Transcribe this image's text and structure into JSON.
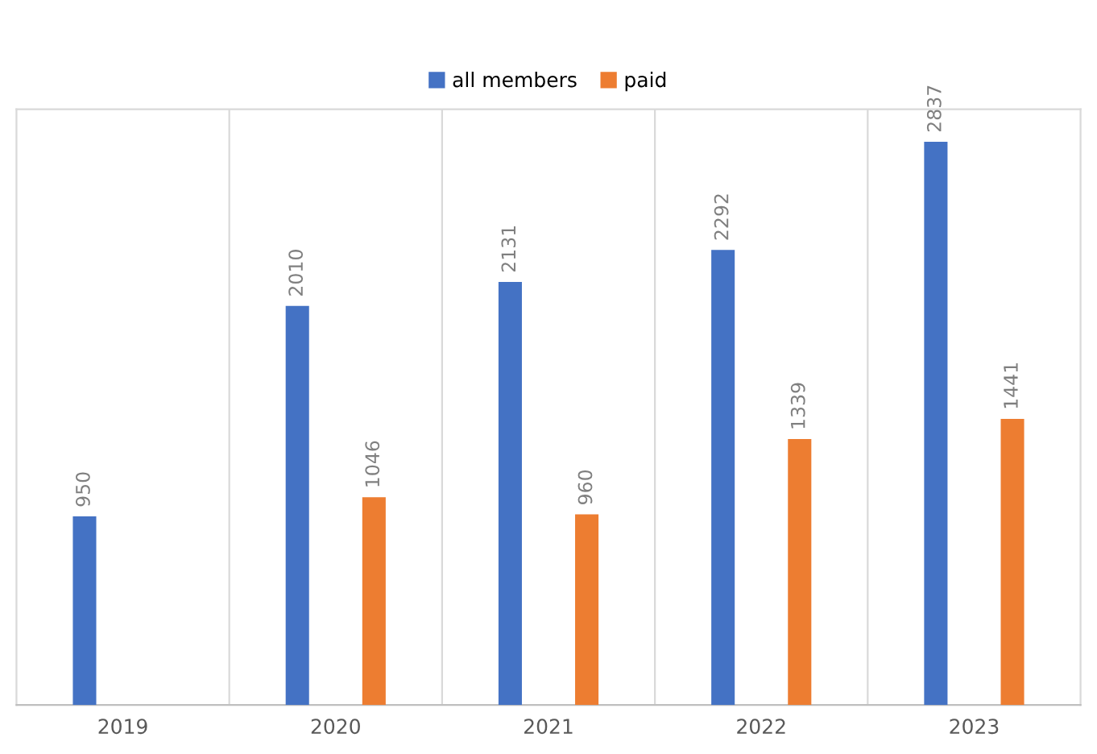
{
  "chart_data": {
    "type": "bar",
    "categories": [
      "2019",
      "2020",
      "2021",
      "2022",
      "2023"
    ],
    "series": [
      {
        "name": "all members",
        "color": "#4472c4",
        "values": [
          950,
          2010,
          2131,
          2292,
          2837
        ]
      },
      {
        "name": "paid",
        "color": "#ed7d31",
        "values": [
          null,
          1046,
          960,
          1339,
          1441
        ]
      }
    ],
    "ylim": [
      0,
      3000
    ],
    "data_labels": true,
    "grid": "x",
    "legend": "top",
    "tick_labels": "x"
  }
}
